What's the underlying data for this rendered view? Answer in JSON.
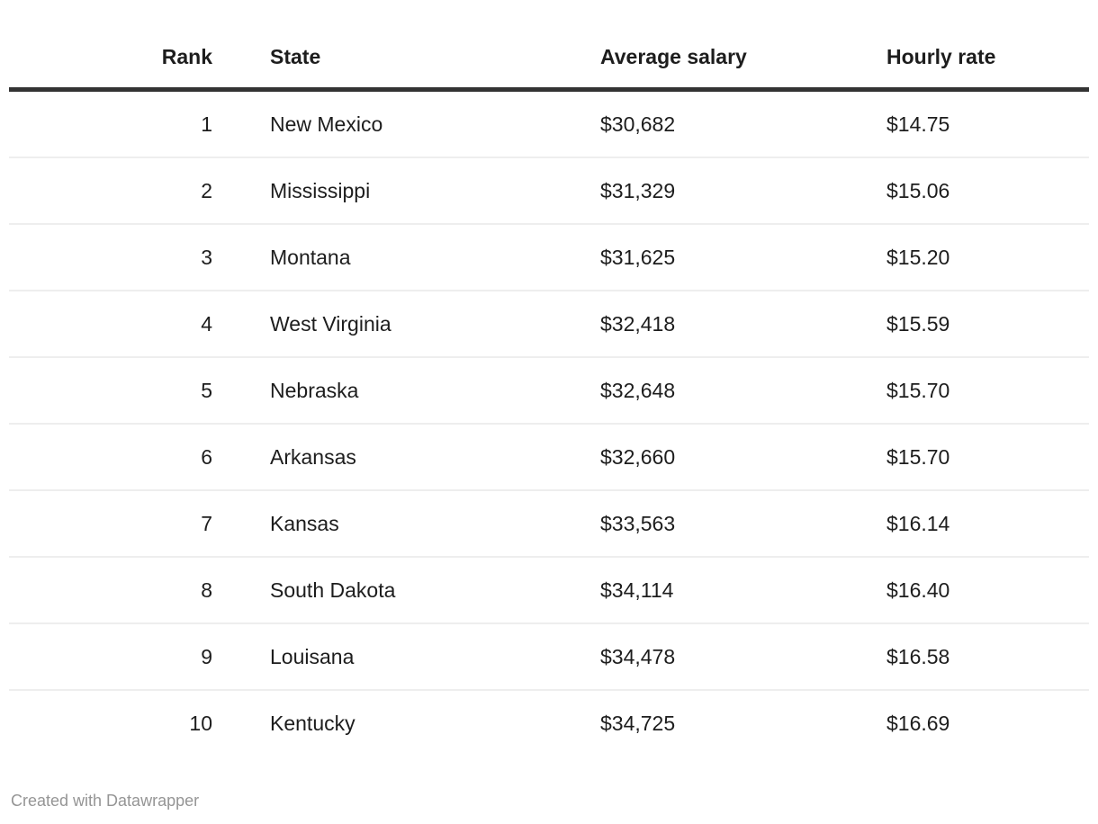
{
  "chart_data": {
    "type": "table",
    "columns": [
      "Rank",
      "State",
      "Average salary",
      "Hourly rate"
    ],
    "rows": [
      [
        1,
        "New Mexico",
        "$30,682",
        "$14.75"
      ],
      [
        2,
        "Mississippi",
        "$31,329",
        "$15.06"
      ],
      [
        3,
        "Montana",
        "$31,625",
        "$15.20"
      ],
      [
        4,
        "West Virginia",
        "$32,418",
        "$15.59"
      ],
      [
        5,
        "Nebraska",
        "$32,648",
        "$15.70"
      ],
      [
        6,
        "Arkansas",
        "$32,660",
        "$15.70"
      ],
      [
        7,
        "Kansas",
        "$33,563",
        "$16.14"
      ],
      [
        8,
        "South Dakota",
        "$34,114",
        "$16.40"
      ],
      [
        9,
        "Louisana",
        "$34,478",
        "$16.58"
      ],
      [
        10,
        "Kentucky",
        "$34,725",
        "$16.69"
      ]
    ],
    "average_salary_values": [
      30682,
      31329,
      31625,
      32418,
      32648,
      32660,
      33563,
      34114,
      34478,
      34725
    ],
    "hourly_rate_values": [
      14.75,
      15.06,
      15.2,
      15.59,
      15.7,
      15.7,
      16.14,
      16.4,
      16.58,
      16.69
    ],
    "attribution": "Created with Datawrapper",
    "layout_hints": {
      "grid": "horizontal row dividers only",
      "header_rule": "thick dark",
      "legend": "none"
    }
  },
  "table": {
    "headers": [
      "Rank",
      "State",
      "Average salary",
      "Hourly rate"
    ],
    "rows": [
      {
        "rank": "1",
        "state": "New Mexico",
        "salary": "$30,682",
        "hourly": "$14.75"
      },
      {
        "rank": "2",
        "state": "Mississippi",
        "salary": "$31,329",
        "hourly": "$15.06"
      },
      {
        "rank": "3",
        "state": "Montana",
        "salary": "$31,625",
        "hourly": "$15.20"
      },
      {
        "rank": "4",
        "state": "West Virginia",
        "salary": "$32,418",
        "hourly": "$15.59"
      },
      {
        "rank": "5",
        "state": "Nebraska",
        "salary": "$32,648",
        "hourly": "$15.70"
      },
      {
        "rank": "6",
        "state": "Arkansas",
        "salary": "$32,660",
        "hourly": "$15.70"
      },
      {
        "rank": "7",
        "state": "Kansas",
        "salary": "$33,563",
        "hourly": "$16.14"
      },
      {
        "rank": "8",
        "state": "South Dakota",
        "salary": "$34,114",
        "hourly": "$16.40"
      },
      {
        "rank": "9",
        "state": "Louisana",
        "salary": "$34,478",
        "hourly": "$16.58"
      },
      {
        "rank": "10",
        "state": "Kentucky",
        "salary": "$34,725",
        "hourly": "$16.69"
      }
    ]
  },
  "footer": {
    "attribution": "Created with Datawrapper"
  },
  "colors": {
    "background": "#ffffff",
    "text": "#1d1d1d",
    "header_rule": "#333333",
    "row_divider": "#eeeeee",
    "footer_text": "#959595"
  }
}
